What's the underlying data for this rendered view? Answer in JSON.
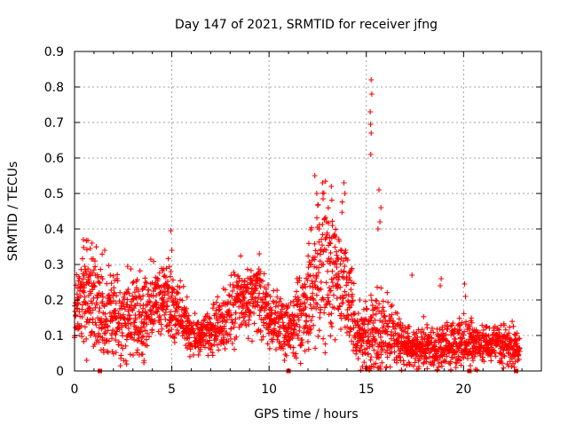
{
  "chart_data": {
    "type": "scatter",
    "title": "Day 147 of 2021, SRMTID for receiver jfng",
    "xlabel": "GPS time / hours",
    "ylabel": "SRMTID / TECUs",
    "xlim": [
      0,
      24
    ],
    "ylim": [
      0,
      0.9
    ],
    "grid": true,
    "marker": "+",
    "xticks": [
      0,
      5,
      10,
      15,
      20
    ],
    "xtick_labels": [
      "0",
      "5",
      "10",
      "15",
      "20"
    ],
    "yticks": [
      0,
      0.1,
      0.2,
      0.3,
      0.4,
      0.5,
      0.6,
      0.7,
      0.8,
      0.9
    ],
    "ytick_labels": [
      "0",
      "0.1",
      "0.2",
      "0.3",
      "0.4",
      "0.5",
      "0.6",
      "0.7",
      "0.8",
      "0.9"
    ],
    "gap_markers_x": [
      1.3,
      11.0,
      20.3,
      22.7
    ],
    "series": [
      {
        "name": "SRMTID",
        "color": "#ff0000",
        "envelope": {
          "x": [
            0.0,
            0.3,
            0.6,
            1.0,
            1.5,
            2.0,
            2.5,
            3.0,
            3.5,
            4.0,
            4.5,
            5.0,
            5.5,
            6.0,
            6.5,
            7.0,
            7.5,
            8.0,
            8.5,
            9.0,
            9.5,
            10.0,
            10.5,
            11.0,
            11.5,
            12.0,
            12.5,
            13.0,
            13.5,
            14.0,
            14.5,
            15.0,
            15.5,
            16.0,
            16.5,
            17.0,
            17.5,
            18.0,
            18.5,
            19.0,
            19.5,
            20.0,
            20.5,
            21.0,
            21.5,
            22.0,
            22.5,
            22.9
          ],
          "center": [
            0.15,
            0.2,
            0.22,
            0.2,
            0.17,
            0.15,
            0.14,
            0.16,
            0.15,
            0.19,
            0.2,
            0.18,
            0.16,
            0.09,
            0.1,
            0.11,
            0.14,
            0.16,
            0.2,
            0.22,
            0.2,
            0.15,
            0.14,
            0.12,
            0.15,
            0.2,
            0.28,
            0.3,
            0.28,
            0.22,
            0.1,
            0.08,
            0.12,
            0.1,
            0.09,
            0.06,
            0.06,
            0.07,
            0.06,
            0.07,
            0.08,
            0.08,
            0.07,
            0.08,
            0.08,
            0.07,
            0.07,
            0.06
          ],
          "spread": [
            0.06,
            0.09,
            0.1,
            0.1,
            0.09,
            0.09,
            0.09,
            0.08,
            0.08,
            0.08,
            0.07,
            0.08,
            0.06,
            0.04,
            0.04,
            0.05,
            0.06,
            0.07,
            0.07,
            0.07,
            0.07,
            0.06,
            0.06,
            0.05,
            0.08,
            0.1,
            0.13,
            0.14,
            0.12,
            0.12,
            0.07,
            0.07,
            0.1,
            0.08,
            0.06,
            0.04,
            0.04,
            0.05,
            0.04,
            0.05,
            0.05,
            0.05,
            0.04,
            0.04,
            0.04,
            0.04,
            0.04,
            0.03
          ]
        },
        "outliers": [
          {
            "x": 0.45,
            "y": 0.37
          },
          {
            "x": 0.9,
            "y": 0.36
          },
          {
            "x": 1.55,
            "y": 0.34
          },
          {
            "x": 4.95,
            "y": 0.395
          },
          {
            "x": 5.0,
            "y": 0.34
          },
          {
            "x": 9.5,
            "y": 0.33
          },
          {
            "x": 12.35,
            "y": 0.55
          },
          {
            "x": 12.45,
            "y": 0.5
          },
          {
            "x": 12.75,
            "y": 0.53
          },
          {
            "x": 13.2,
            "y": 0.52
          },
          {
            "x": 13.85,
            "y": 0.53
          },
          {
            "x": 13.9,
            "y": 0.5
          },
          {
            "x": 15.25,
            "y": 0.82
          },
          {
            "x": 15.28,
            "y": 0.78
          },
          {
            "x": 15.2,
            "y": 0.73
          },
          {
            "x": 15.22,
            "y": 0.695
          },
          {
            "x": 15.25,
            "y": 0.67
          },
          {
            "x": 15.23,
            "y": 0.61
          },
          {
            "x": 15.65,
            "y": 0.51
          },
          {
            "x": 15.75,
            "y": 0.46
          },
          {
            "x": 15.7,
            "y": 0.42
          },
          {
            "x": 15.6,
            "y": 0.4
          },
          {
            "x": 18.85,
            "y": 0.26
          },
          {
            "x": 18.8,
            "y": 0.24
          },
          {
            "x": 20.05,
            "y": 0.245
          },
          {
            "x": 20.1,
            "y": 0.21
          },
          {
            "x": 17.35,
            "y": 0.27
          }
        ]
      }
    ]
  }
}
